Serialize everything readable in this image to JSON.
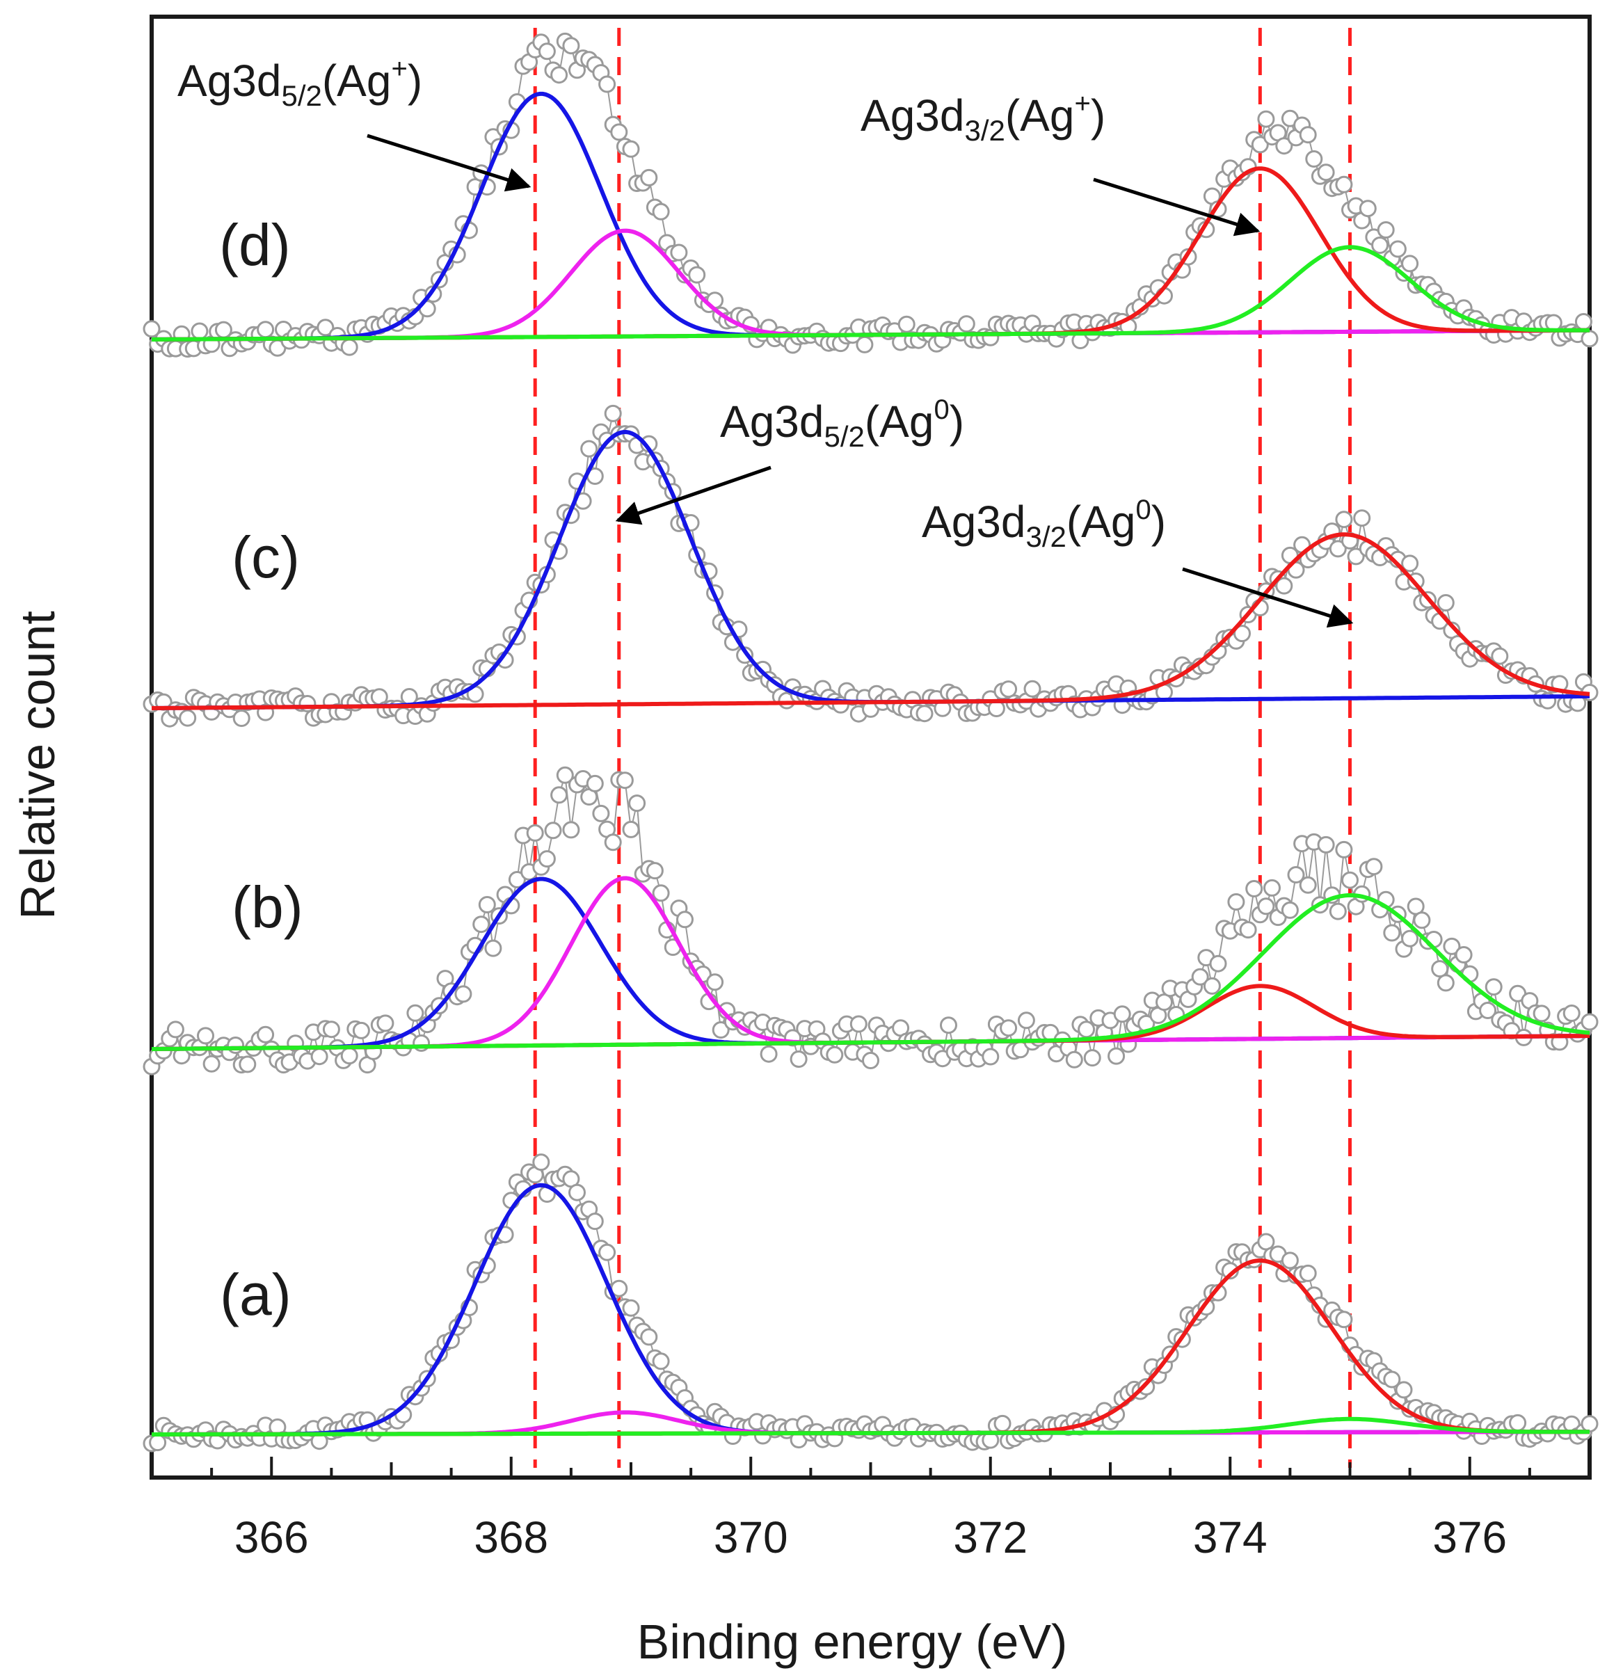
{
  "chart_data": {
    "type": "line",
    "title": "",
    "xlabel": "Binding energy (eV)",
    "ylabel": "Relative count",
    "xlim": [
      365,
      377
    ],
    "xticks": [
      366,
      368,
      370,
      372,
      374,
      376
    ],
    "grid": false,
    "reference_lines_eV": [
      368.2,
      368.9,
      374.25,
      375.0
    ],
    "reference_line_color": "#ff2020",
    "colors": {
      "data": "#9a9a9a",
      "blue": "#1515e6",
      "magenta": "#ee22ee",
      "red": "#ee1a1a",
      "green": "#22ee22"
    },
    "panels": [
      {
        "label": "(a)",
        "baseline": [
          0.0,
          0.1
        ],
        "components": [
          {
            "color": "blue",
            "center": 368.25,
            "height": 9.4,
            "width": 0.55
          },
          {
            "color": "magenta",
            "center": 368.95,
            "height": 0.8,
            "width": 0.45
          },
          {
            "color": "red",
            "center": 374.25,
            "height": 6.5,
            "width": 0.6
          },
          {
            "color": "green",
            "center": 375.0,
            "height": 0.5,
            "width": 0.5
          }
        ],
        "noise": 0.35,
        "seed": 7
      },
      {
        "label": "(b)",
        "baseline": [
          0.0,
          0.5
        ],
        "components": [
          {
            "color": "blue",
            "center": 368.25,
            "height": 6.3,
            "width": 0.5
          },
          {
            "color": "magenta",
            "center": 368.95,
            "height": 6.3,
            "width": 0.45
          },
          {
            "color": "red",
            "center": 374.25,
            "height": 2.0,
            "width": 0.45
          },
          {
            "color": "green",
            "center": 375.0,
            "height": 5.4,
            "width": 0.72
          }
        ],
        "noise": 0.75,
        "seed": 19
      },
      {
        "label": "(c)",
        "baseline": [
          0.0,
          0.45
        ],
        "components": [
          {
            "color": "blue",
            "center": 368.95,
            "height": 10.3,
            "width": 0.55
          },
          {
            "color": "red",
            "center": 374.95,
            "height": 6.2,
            "width": 0.7
          }
        ],
        "noise": 0.45,
        "seed": 31
      },
      {
        "label": "(d)",
        "baseline": [
          0.0,
          0.35
        ],
        "components": [
          {
            "color": "blue",
            "center": 368.25,
            "height": 9.2,
            "width": 0.5
          },
          {
            "color": "magenta",
            "center": 368.95,
            "height": 4.0,
            "width": 0.45
          },
          {
            "color": "red",
            "center": 374.25,
            "height": 6.2,
            "width": 0.5
          },
          {
            "color": "green",
            "center": 375.0,
            "height": 3.2,
            "width": 0.5
          }
        ],
        "noise": 0.4,
        "seed": 43
      }
    ],
    "annotations": [
      {
        "id": "ag3d52-agplus",
        "base": "Ag3d",
        "sub": "5/2",
        "rest_open": "(Ag",
        "sup": "+",
        "rest_close": ")"
      },
      {
        "id": "ag3d32-agplus",
        "base": "Ag3d",
        "sub": "3/2",
        "rest_open": "(Ag",
        "sup": "+",
        "rest_close": ")"
      },
      {
        "id": "ag3d52-ag0",
        "base": "Ag3d",
        "sub": "5/2",
        "rest_open": "(Ag",
        "sup": "0",
        "rest_close": ")"
      },
      {
        "id": "ag3d32-ag0",
        "base": "Ag3d",
        "sub": "3/2",
        "rest_open": "(Ag",
        "sup": "0",
        "rest_close": ")"
      }
    ]
  }
}
